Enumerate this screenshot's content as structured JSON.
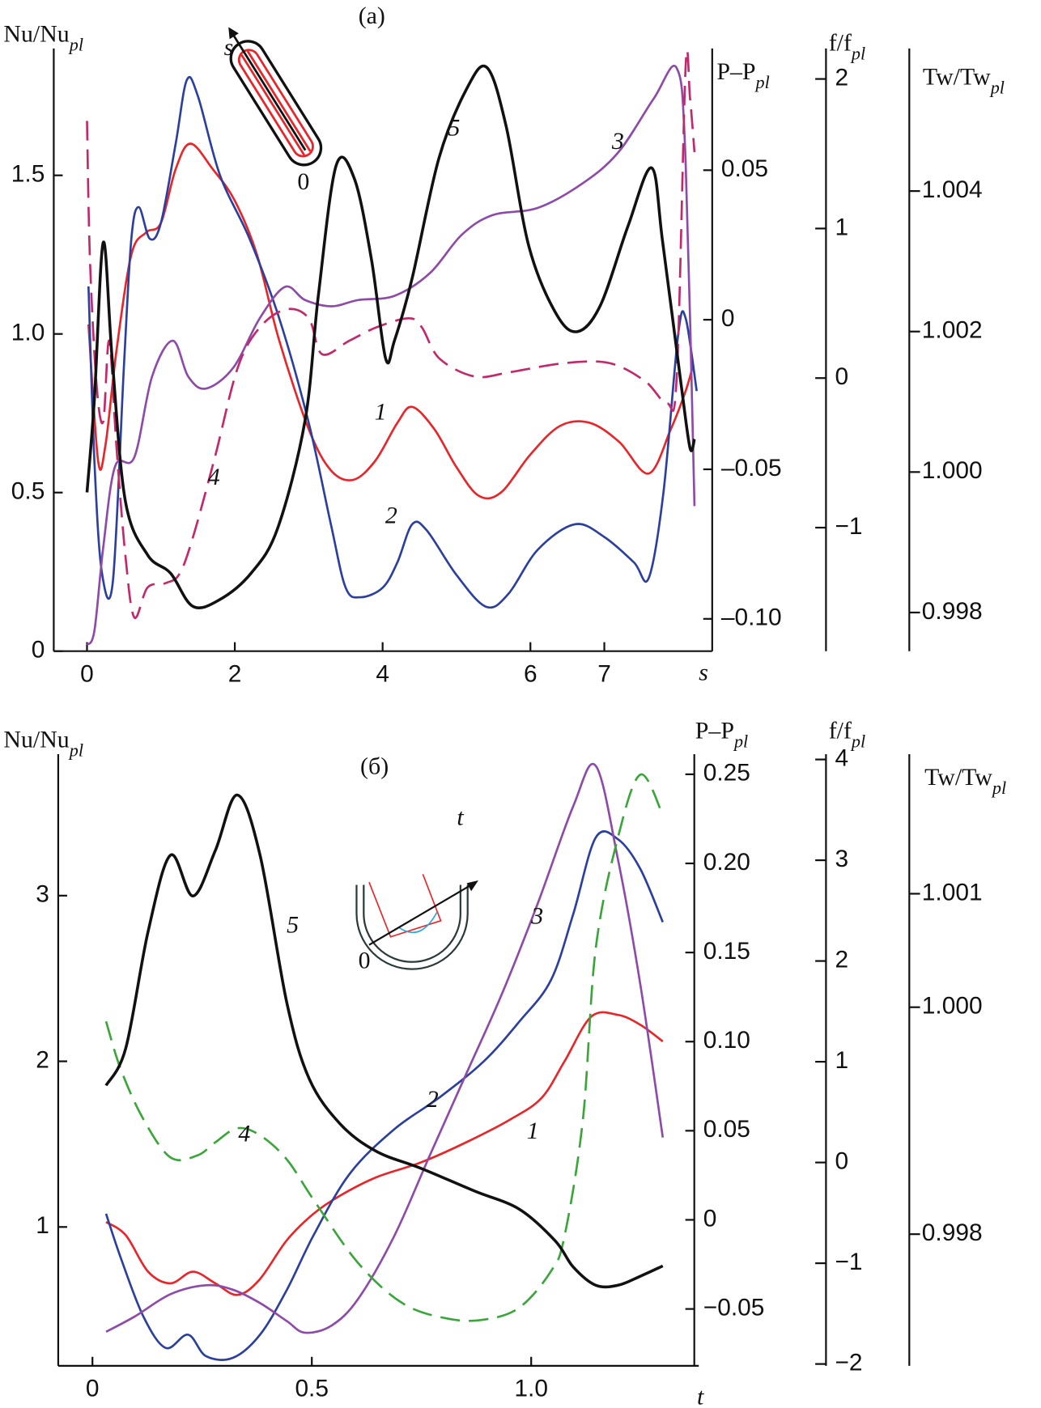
{
  "chart_data": [
    {
      "type": "line",
      "title": "(a)",
      "xlabel": "s",
      "ylabel": {
        "text": "Nu/Nu",
        "sub": "pl"
      },
      "y2label": {
        "text": "P–P",
        "sub": "pl"
      },
      "y3label": {
        "text": "f/f",
        "sub": "pl"
      },
      "y4label": {
        "text": "Tw/Tw",
        "sub": "pl"
      },
      "inset": {
        "arrow": "s",
        "origin": "0"
      },
      "xlim": [
        -0.45,
        8.46
      ],
      "xticks": [
        0,
        2,
        4,
        6,
        7
      ],
      "ylim": [
        0,
        1.9
      ],
      "yticks": [
        0,
        0.5,
        {
          "value": 1,
          "label": "1.0"
        },
        1.5
      ],
      "y2lim": [
        -0.1108,
        0.0907
      ],
      "y2ticks": [
        0.05,
        0,
        {
          "value": -0.05,
          "label": "–0.05"
        },
        {
          "value": -0.1,
          "label": "–0.10"
        }
      ],
      "y3lim": [
        -1.826,
        2.204
      ],
      "y3ticks": [
        2,
        1,
        0,
        {
          "value": -1,
          "label": "−1"
        }
      ],
      "y4lim": [
        0.99745,
        1.00603
      ],
      "y4ticks": [
        1.004,
        1.002,
        {
          "value": 1,
          "label": "1.000"
        },
        0.998
      ],
      "series": [
        {
          "name": "1",
          "color": "#e8262a",
          "dash": false,
          "x": [
            0.02,
            0.15,
            0.25,
            0.4,
            0.6,
            0.8,
            1.0,
            1.2,
            1.4,
            1.7,
            2.0,
            2.3,
            2.6,
            3.0,
            3.3,
            3.6,
            3.9,
            4.2,
            4.4,
            4.7,
            5.0,
            5.3,
            5.6,
            6.0,
            6.4,
            6.8,
            7.2,
            7.6,
            7.9,
            8.1,
            8.2
          ],
          "values": [
            1.03,
            0.6,
            0.65,
            0.95,
            1.25,
            1.32,
            1.35,
            1.52,
            1.6,
            1.52,
            1.42,
            1.25,
            0.98,
            0.7,
            0.57,
            0.54,
            0.6,
            0.72,
            0.77,
            0.7,
            0.58,
            0.49,
            0.5,
            0.62,
            0.71,
            0.72,
            0.66,
            0.56,
            0.7,
            0.82,
            0.9
          ]
        },
        {
          "name": "2",
          "color": "#2b3f9e",
          "dash": false,
          "x": [
            0.02,
            0.1,
            0.2,
            0.35,
            0.5,
            0.6,
            0.7,
            0.85,
            1.0,
            1.2,
            1.35,
            1.5,
            1.8,
            2.2,
            2.6,
            3.0,
            3.3,
            3.5,
            3.7,
            4.0,
            4.2,
            4.4,
            4.6,
            5.0,
            5.4,
            5.7,
            6.1,
            6.6,
            7.0,
            7.4,
            7.6,
            7.8,
            8.0,
            8.1,
            8.25
          ],
          "values": [
            1.15,
            0.6,
            0.25,
            0.22,
            0.9,
            1.3,
            1.4,
            1.3,
            1.35,
            1.6,
            1.8,
            1.75,
            1.5,
            1.3,
            1.05,
            0.72,
            0.4,
            0.2,
            0.17,
            0.2,
            0.28,
            0.4,
            0.38,
            0.24,
            0.14,
            0.18,
            0.32,
            0.4,
            0.36,
            0.28,
            0.23,
            0.5,
            1.0,
            1.05,
            0.82
          ]
        },
        {
          "name": "3",
          "color": "#8e4aa8",
          "dash": false,
          "axis": "y2",
          "x": [
            0,
            0.1,
            0.22,
            0.38,
            0.64,
            0.88,
            1.16,
            1.37,
            1.61,
            1.98,
            2.34,
            2.68,
            2.95,
            3.31,
            3.67,
            4.16,
            4.64,
            5.07,
            5.49,
            6.1,
            6.7,
            7.19,
            7.67,
            7.98,
            8.1,
            8.22
          ],
          "values": [
            -0.1087,
            -0.104,
            -0.076,
            -0.049,
            -0.046,
            -0.019,
            -0.007,
            -0.019,
            -0.023,
            -0.016,
            0.0006,
            0.011,
            0.0066,
            0.0045,
            0.0066,
            0.008,
            0.0156,
            0.0284,
            0.035,
            0.0374,
            0.0455,
            0.056,
            0.074,
            0.0841,
            0.053,
            -0.0623
          ]
        },
        {
          "name": "4",
          "color": "#c2286a",
          "dash": true,
          "axis": "y3",
          "x": [
            0,
            0.04,
            0.13,
            0.22,
            0.3,
            0.4,
            0.52,
            0.64,
            0.82,
            1.07,
            1.25,
            1.43,
            1.73,
            2.04,
            2.34,
            2.7,
            3.0,
            3.18,
            3.55,
            3.92,
            4.35,
            4.53,
            4.77,
            5.25,
            5.73,
            6.46,
            7.07,
            7.55,
            7.85,
            7.98,
            8.1,
            8.16,
            8.22
          ],
          "values": [
            1.72,
            0.79,
            -0.05,
            -0.29,
            0.25,
            -0.47,
            -1.19,
            -1.6,
            -1.4,
            -1.37,
            -1.31,
            -1.07,
            -0.53,
            0.07,
            0.34,
            0.46,
            0.4,
            0.16,
            0.25,
            0.34,
            0.4,
            0.34,
            0.13,
            0.01,
            0.04,
            0.1,
            0.1,
            -0.02,
            -0.17,
            0.01,
            2.08,
            1.87,
            1.51
          ]
        },
        {
          "name": "5",
          "color": "#111111",
          "dash": false,
          "axis": "y4",
          "x": [
            0,
            0.1,
            0.22,
            0.34,
            0.52,
            0.82,
            1.13,
            1.43,
            1.79,
            2.22,
            2.58,
            2.95,
            3.13,
            3.37,
            3.62,
            3.85,
            4.04,
            4.16,
            4.4,
            4.76,
            5.13,
            5.41,
            5.67,
            5.98,
            6.35,
            6.64,
            6.95,
            7.32,
            7.64,
            7.79,
            8.04,
            8.16,
            8.22
          ],
          "values": [
            0.99971,
            1.00104,
            1.00327,
            1.00162,
            0.99958,
            0.99882,
            0.99856,
            0.99809,
            0.99818,
            0.99856,
            0.9992,
            1.00073,
            1.00251,
            1.00436,
            1.00417,
            1.00302,
            1.00162,
            1.00187,
            1.00276,
            1.00446,
            1.00544,
            1.00576,
            1.00493,
            1.00321,
            1.00225,
            1.002,
            1.00238,
            1.0035,
            1.00433,
            1.00327,
            1.00124,
            1.00034,
            1.00047
          ]
        }
      ]
    },
    {
      "type": "line",
      "title": "(б)",
      "xlabel": "t",
      "ylabel": {
        "text": "Nu/Nu",
        "sub": "pl"
      },
      "y2label": {
        "text": "P–P",
        "sub": "pl"
      },
      "y3label": {
        "text": "f/f",
        "sub": "pl"
      },
      "y4label": {
        "text": "Tw/Tw",
        "sub": "pl"
      },
      "inset": {
        "arrow": "t",
        "origin": "0"
      },
      "xlim": [
        -0.078,
        1.382
      ],
      "xticks": [
        0,
        0.5,
        {
          "value": 1,
          "label": "1.0"
        }
      ],
      "ylim": [
        0.162,
        3.854
      ],
      "yticks": [
        1,
        2,
        3
      ],
      "y2lim": [
        -0.0819,
        0.2613
      ],
      "y2ticks": [
        0.25,
        {
          "value": 0.2,
          "label": "0.20"
        },
        0.15,
        {
          "value": 0.1,
          "label": "0.10"
        },
        0.05,
        0,
        {
          "value": -0.05,
          "label": "−0.05"
        }
      ],
      "y3lim": [
        -2.018,
        4.053
      ],
      "y3ticks": [
        4,
        3,
        2,
        1,
        0,
        {
          "value": -1,
          "label": "−1"
        },
        {
          "value": -2,
          "label": "−2"
        }
      ],
      "y4lim": [
        0.99684,
        1.00223
      ],
      "y4ticks": [
        1.001,
        {
          "value": 1,
          "label": "1.000"
        },
        0.998
      ],
      "series": [
        {
          "name": "1",
          "color": "#e8262a",
          "dash": false,
          "x": [
            0.031,
            0.076,
            0.127,
            0.178,
            0.229,
            0.28,
            0.33,
            0.38,
            0.443,
            0.504,
            0.565,
            0.647,
            0.749,
            0.851,
            0.953,
            1.024,
            1.076,
            1.137,
            1.198,
            1.249,
            1.3
          ],
          "values": [
            1.03,
            0.95,
            0.73,
            0.66,
            0.73,
            0.66,
            0.59,
            0.68,
            0.92,
            1.08,
            1.19,
            1.3,
            1.39,
            1.51,
            1.65,
            1.78,
            2.0,
            2.27,
            2.28,
            2.22,
            2.12
          ]
        },
        {
          "name": "2",
          "color": "#2b3f9e",
          "dash": false,
          "x": [
            0.031,
            0.065,
            0.116,
            0.167,
            0.218,
            0.259,
            0.32,
            0.382,
            0.443,
            0.504,
            0.586,
            0.688,
            0.79,
            0.892,
            0.973,
            1.045,
            1.096,
            1.147,
            1.198,
            1.249,
            1.3
          ],
          "values": [
            1.08,
            0.81,
            0.46,
            0.27,
            0.35,
            0.22,
            0.21,
            0.35,
            0.62,
            0.95,
            1.32,
            1.59,
            1.78,
            2.0,
            2.24,
            2.49,
            2.89,
            3.35,
            3.34,
            3.16,
            2.84
          ]
        },
        {
          "name": "3",
          "color": "#8e4aa8",
          "dash": false,
          "axis": "y2",
          "x": [
            0.031,
            0.096,
            0.178,
            0.259,
            0.32,
            0.382,
            0.443,
            0.484,
            0.545,
            0.606,
            0.688,
            0.769,
            0.851,
            0.933,
            1.014,
            1.096,
            1.147,
            1.198,
            1.249,
            1.3
          ],
          "values": [
            -0.0628,
            -0.0543,
            -0.0417,
            -0.0367,
            -0.0392,
            -0.0467,
            -0.0568,
            -0.0633,
            -0.0593,
            -0.0442,
            -0.009,
            0.0362,
            0.0814,
            0.1266,
            0.1769,
            0.2322,
            0.2548,
            0.202,
            0.1317,
            0.0462
          ]
        },
        {
          "name": "4",
          "color": "#3aa63a",
          "dash": true,
          "axis": "y3",
          "x": [
            0.031,
            0.065,
            0.116,
            0.178,
            0.239,
            0.28,
            0.33,
            0.382,
            0.443,
            0.504,
            0.606,
            0.708,
            0.81,
            0.892,
            0.973,
            1.045,
            1.076,
            1.118,
            1.147,
            1.198,
            1.249,
            1.3
          ],
          "values": [
            1.4,
            0.92,
            0.43,
            0.05,
            0.07,
            0.2,
            0.34,
            0.27,
            0.03,
            -0.37,
            -1.0,
            -1.4,
            -1.55,
            -1.56,
            -1.44,
            -1.08,
            -0.73,
            0.43,
            2.12,
            3.23,
            3.85,
            3.45
          ]
        },
        {
          "name": "5",
          "color": "#111111",
          "dash": false,
          "axis": "y4",
          "x": [
            0.031,
            0.076,
            0.127,
            0.178,
            0.229,
            0.28,
            0.33,
            0.382,
            0.443,
            0.494,
            0.565,
            0.647,
            0.749,
            0.871,
            0.973,
            1.055,
            1.096,
            1.147,
            1.198,
            1.249,
            1.3
          ],
          "values": [
            0.99931,
            0.99964,
            1.00067,
            1.00134,
            1.00098,
            1.00138,
            1.00187,
            1.00134,
            1.00004,
            0.99937,
            0.99897,
            0.99873,
            0.99858,
            0.99838,
            0.99822,
            0.99794,
            0.99771,
            0.99755,
            0.99755,
            0.99763,
            0.99772
          ]
        }
      ]
    }
  ]
}
